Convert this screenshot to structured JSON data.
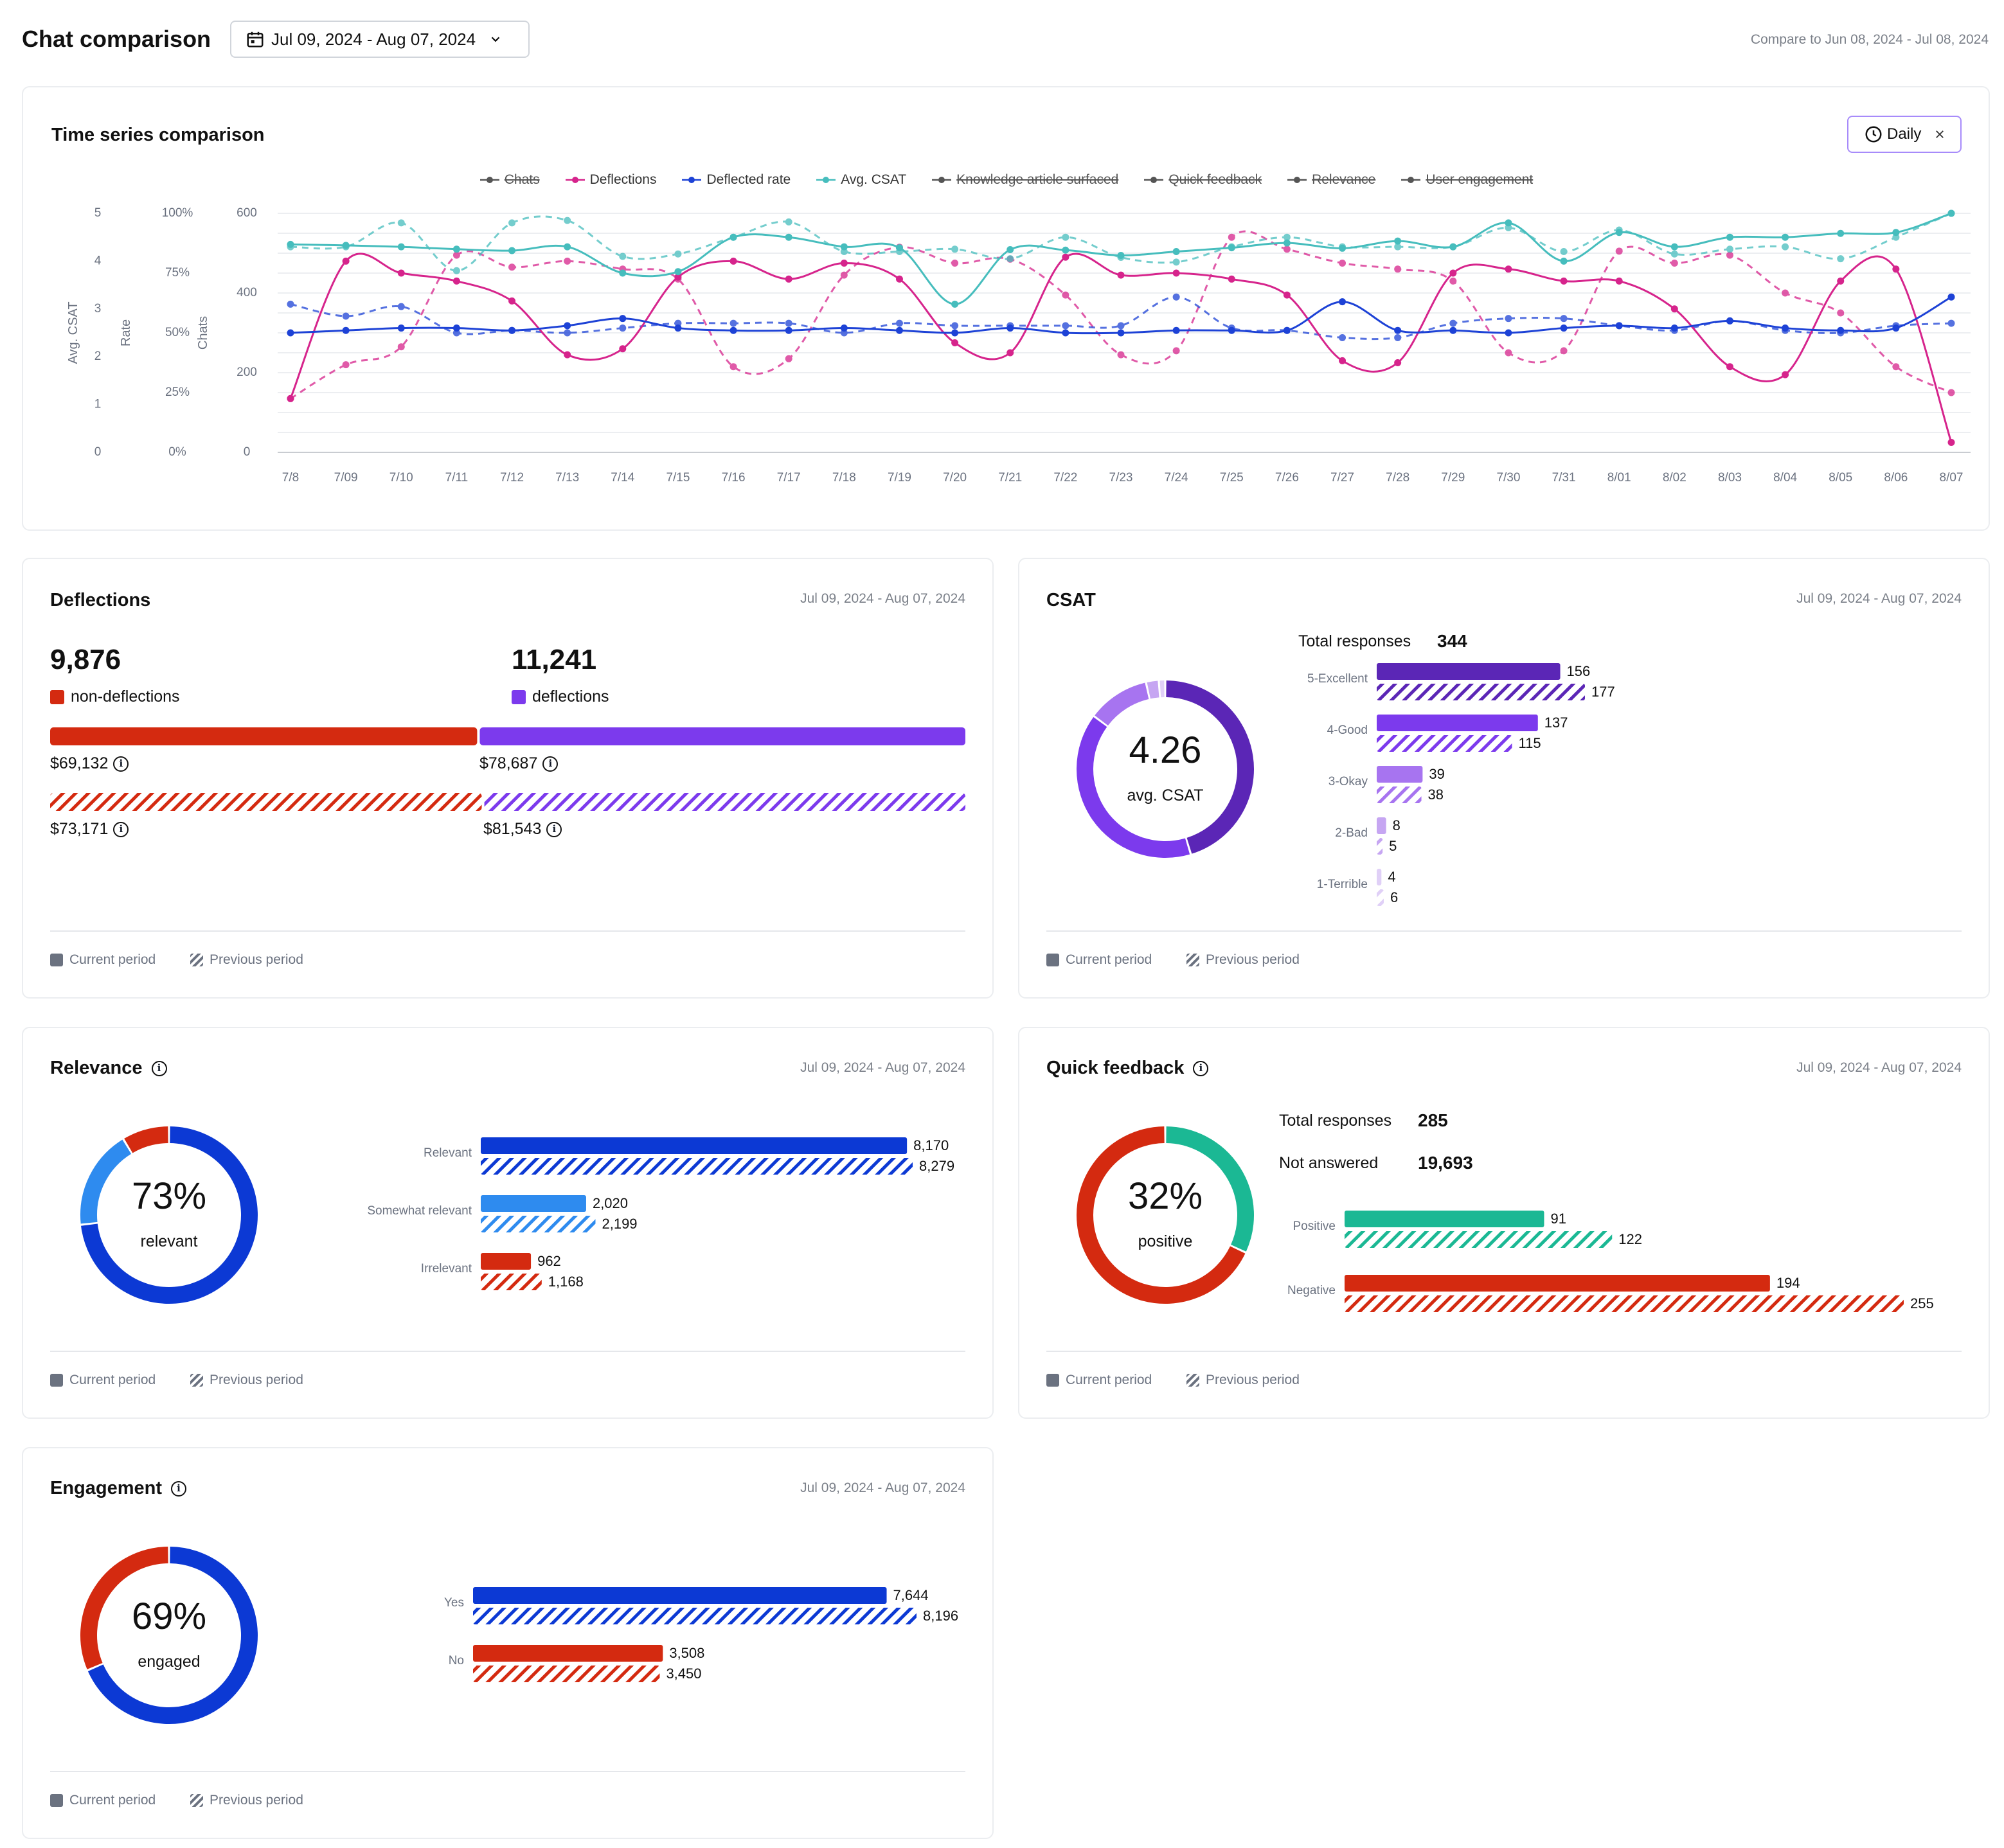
{
  "header": {
    "title": "Chat comparison",
    "date_range": "Jul 09, 2024 - Aug 07, 2024",
    "compare_text": "Compare to Jun 08, 2024 - Jul 08, 2024"
  },
  "colors": {
    "red": "#d42a10",
    "purple": "#7c3aed",
    "blue": "#0c39d4",
    "lightblue": "#2e8bef",
    "teal": "#1bb894",
    "magenta": "#d6248c",
    "cyan": "#46bdbd",
    "darkpurple": "#5b26b6"
  },
  "legend_labels": {
    "current": "Current period",
    "previous": "Previous period"
  },
  "timeseries": {
    "title": "Time series comparison",
    "granularity_label": "Daily",
    "legend": [
      {
        "name": "Chats",
        "active": false,
        "color": "#555555"
      },
      {
        "name": "Deflections",
        "active": true,
        "color": "#d6248c"
      },
      {
        "name": "Deflected rate",
        "active": true,
        "color": "#1d42d6"
      },
      {
        "name": "Avg. CSAT",
        "active": true,
        "color": "#46bdbd"
      },
      {
        "name": "Knowledge article surfaced",
        "active": false,
        "color": "#555555"
      },
      {
        "name": "Quick feedback",
        "active": false,
        "color": "#555555"
      },
      {
        "name": "Relevance",
        "active": false,
        "color": "#555555"
      },
      {
        "name": "User engagement",
        "active": false,
        "color": "#555555"
      }
    ],
    "axis_titles": {
      "csat": "Avg. CSAT",
      "rate": "Rate",
      "chats": "Chats"
    },
    "csat_ticks": [
      "5",
      "4",
      "3",
      "2",
      "1",
      "0"
    ],
    "rate_ticks": [
      "100%",
      "75%",
      "50%",
      "25%",
      "0%"
    ],
    "chats_ticks": [
      "600",
      "400",
      "200",
      "0"
    ]
  },
  "chart_data": {
    "type": "line",
    "x": [
      "7/8",
      "7/09",
      "7/10",
      "7/11",
      "7/12",
      "7/13",
      "7/14",
      "7/15",
      "7/16",
      "7/17",
      "7/18",
      "7/19",
      "7/20",
      "7/21",
      "7/22",
      "7/23",
      "7/24",
      "7/25",
      "7/26",
      "7/27",
      "7/28",
      "7/29",
      "7/30",
      "7/31",
      "8/01",
      "8/02",
      "8/03",
      "8/04",
      "8/05",
      "8/06",
      "8/07"
    ],
    "ylim_chats": [
      0,
      600
    ],
    "ylim_rate": [
      0,
      100
    ],
    "ylim_csat": [
      0,
      5
    ],
    "series": [
      {
        "name": "Deflections",
        "axis": "chats",
        "values": [
          135,
          480,
          450,
          430,
          380,
          245,
          260,
          440,
          480,
          435,
          475,
          435,
          275,
          250,
          490,
          445,
          450,
          435,
          395,
          230,
          225,
          450,
          460,
          430,
          430,
          360,
          215,
          195,
          430,
          460,
          25
        ],
        "dashed": false
      },
      {
        "name": "Deflections",
        "axis": "chats",
        "values": [
          135,
          220,
          265,
          495,
          465,
          480,
          460,
          435,
          215,
          235,
          445,
          515,
          475,
          485,
          395,
          245,
          255,
          540,
          510,
          475,
          460,
          430,
          250,
          255,
          505,
          475,
          495,
          400,
          350,
          215,
          150
        ],
        "dashed": true
      },
      {
        "name": "Deflected rate",
        "axis": "rate",
        "values": [
          50,
          51,
          52,
          52,
          51,
          53,
          56,
          52,
          51,
          51,
          52,
          51,
          50,
          52,
          50,
          50,
          51,
          51,
          51,
          63,
          51,
          51,
          50,
          52,
          53,
          52,
          55,
          52,
          51,
          52,
          65
        ],
        "dashed": false
      },
      {
        "name": "Deflected rate",
        "axis": "rate",
        "values": [
          62,
          57,
          61,
          50,
          51,
          50,
          52,
          54,
          54,
          54,
          50,
          54,
          53,
          53,
          53,
          53,
          65,
          52,
          51,
          48,
          48,
          54,
          56,
          56,
          53,
          51,
          55,
          51,
          50,
          53,
          54
        ],
        "dashed": true
      },
      {
        "name": "Avg. CSAT",
        "axis": "csat",
        "values": [
          4.35,
          4.33,
          4.3,
          4.25,
          4.22,
          4.3,
          3.75,
          3.78,
          4.5,
          4.5,
          4.3,
          4.28,
          3.1,
          4.24,
          4.23,
          4.12,
          4.2,
          4.28,
          4.38,
          4.27,
          4.42,
          4.3,
          4.8,
          4.0,
          4.6,
          4.3,
          4.5,
          4.5,
          4.58,
          4.6,
          5.0
        ],
        "dashed": false
      },
      {
        "name": "Avg. CSAT",
        "axis": "csat",
        "values": [
          4.3,
          4.3,
          4.8,
          3.8,
          4.8,
          4.85,
          4.1,
          4.15,
          4.5,
          4.82,
          4.2,
          4.2,
          4.25,
          4.05,
          4.5,
          4.08,
          3.98,
          4.3,
          4.5,
          4.3,
          4.3,
          4.3,
          4.7,
          4.2,
          4.65,
          4.15,
          4.25,
          4.3,
          4.05,
          4.5,
          5.0
        ],
        "dashed": true
      }
    ]
  },
  "deflections": {
    "title": "Deflections",
    "date": "Jul 09, 2024 - Aug 07, 2024",
    "non_deflections_value": "9,876",
    "non_deflections_label": "non-deflections",
    "deflections_value": "11,241",
    "deflections_label": "deflections",
    "current_non_deflections_amount": "$69,132",
    "current_deflections_amount": "$78,687",
    "previous_non_deflections_amount": "$73,171",
    "previous_deflections_amount": "$81,543",
    "current_split": 0.468,
    "previous_split": 0.473
  },
  "csat": {
    "title": "CSAT",
    "date": "Jul 09, 2024 - Aug 07, 2024",
    "score": "4.26",
    "score_label": "avg. CSAT",
    "total_label": "Total responses",
    "total_value": "344",
    "bars": [
      {
        "label": "5-Excellent",
        "current": 156,
        "previous": 177,
        "current_text": "156",
        "previous_text": "177",
        "color": "#5b26b6"
      },
      {
        "label": "4-Good",
        "current": 137,
        "previous": 115,
        "current_text": "137",
        "previous_text": "115",
        "color": "#7c3aed"
      },
      {
        "label": "3-Okay",
        "current": 39,
        "previous": 38,
        "current_text": "39",
        "previous_text": "38",
        "color": "#a774f0"
      },
      {
        "label": "2-Bad",
        "current": 8,
        "previous": 5,
        "current_text": "8",
        "previous_text": "5",
        "color": "#c6a6f2"
      },
      {
        "label": "1-Terrible",
        "current": 4,
        "previous": 6,
        "current_text": "4",
        "previous_text": "6",
        "color": "#e0d0f7"
      }
    ]
  },
  "relevance": {
    "title": "Relevance",
    "date": "Jul 09, 2024 - Aug 07, 2024",
    "percent": "73%",
    "percent_label": "relevant",
    "bars": [
      {
        "label": "Relevant",
        "current": 8170,
        "previous": 8279,
        "current_text": "8,170",
        "previous_text": "8,279",
        "color": "#0c39d4"
      },
      {
        "label": "Somewhat relevant",
        "current": 2020,
        "previous": 2199,
        "current_text": "2,020",
        "previous_text": "2,199",
        "color": "#2e8bef"
      },
      {
        "label": "Irrelevant",
        "current": 962,
        "previous": 1168,
        "current_text": "962",
        "previous_text": "1,168",
        "color": "#d42a10"
      }
    ]
  },
  "quick_feedback": {
    "title": "Quick feedback",
    "date": "Jul 09, 2024 - Aug 07, 2024",
    "percent": "32%",
    "percent_label": "positive",
    "total_label": "Total responses",
    "total_value": "285",
    "not_answered_label": "Not answered",
    "not_answered_value": "19,693",
    "bars": [
      {
        "label": "Positive",
        "current": 91,
        "previous": 122,
        "current_text": "91",
        "previous_text": "122",
        "color": "#1bb894"
      },
      {
        "label": "Negative",
        "current": 194,
        "previous": 255,
        "current_text": "194",
        "previous_text": "255",
        "color": "#d42a10"
      }
    ]
  },
  "engagement": {
    "title": "Engagement",
    "date": "Jul 09, 2024 - Aug 07, 2024",
    "percent": "69%",
    "percent_label": "engaged",
    "bars": [
      {
        "label": "Yes",
        "current": 7644,
        "previous": 8196,
        "current_text": "7,644",
        "previous_text": "8,196",
        "color": "#0c39d4"
      },
      {
        "label": "No",
        "current": 3508,
        "previous": 3450,
        "current_text": "3,508",
        "previous_text": "3,450",
        "color": "#d42a10"
      }
    ]
  }
}
